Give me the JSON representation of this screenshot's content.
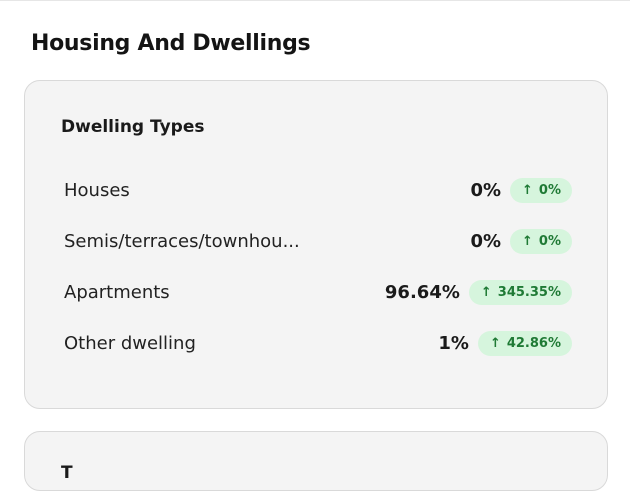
{
  "section": {
    "title": "Housing And Dwellings"
  },
  "dwelling_types": {
    "title": "Dwelling Types",
    "rows": [
      {
        "label": "Houses",
        "value": "0%",
        "change": "0%"
      },
      {
        "label": "Semis/terraces/townhou...",
        "value": "0%",
        "change": "0%"
      },
      {
        "label": "Apartments",
        "value": "96.64%",
        "change": "345.35%"
      },
      {
        "label": "Other dwelling",
        "value": "1%",
        "change": "42.86%"
      }
    ]
  },
  "next_card": {
    "title": "T"
  },
  "icons": {
    "change": "arrow-up-icon",
    "arrow_glyph": "↑"
  },
  "colors": {
    "badge_bg": "#d6f5dd",
    "badge_text": "#1f7a35",
    "card_bg": "#f4f4f4"
  }
}
